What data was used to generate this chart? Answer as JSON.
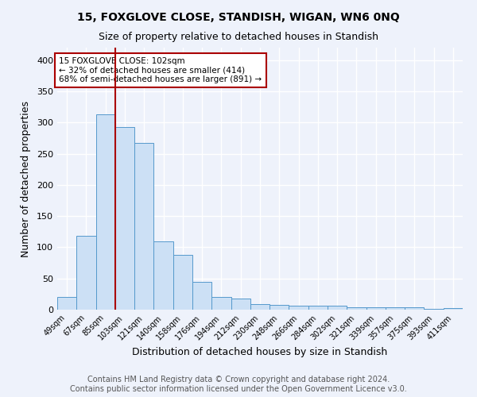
{
  "title": "15, FOXGLOVE CLOSE, STANDISH, WIGAN, WN6 0NQ",
  "subtitle": "Size of property relative to detached houses in Standish",
  "xlabel": "Distribution of detached houses by size in Standish",
  "ylabel": "Number of detached properties",
  "categories": [
    "49sqm",
    "67sqm",
    "85sqm",
    "103sqm",
    "121sqm",
    "140sqm",
    "158sqm",
    "176sqm",
    "194sqm",
    "212sqm",
    "230sqm",
    "248sqm",
    "266sqm",
    "284sqm",
    "302sqm",
    "321sqm",
    "339sqm",
    "357sqm",
    "375sqm",
    "393sqm",
    "411sqm"
  ],
  "values": [
    20,
    119,
    313,
    293,
    267,
    109,
    88,
    45,
    21,
    18,
    9,
    8,
    7,
    7,
    6,
    4,
    4,
    4,
    4,
    1,
    3
  ],
  "bar_color": "#cce0f5",
  "bar_edge_color": "#5599cc",
  "vline_x": 2.5,
  "vline_color": "#aa0000",
  "annotation_text": "15 FOXGLOVE CLOSE: 102sqm\n← 32% of detached houses are smaller (414)\n68% of semi-detached houses are larger (891) →",
  "annotation_box_color": "white",
  "annotation_box_edge": "#aa0000",
  "footer": "Contains HM Land Registry data © Crown copyright and database right 2024.\nContains public sector information licensed under the Open Government Licence v3.0.",
  "ylim": [
    0,
    420
  ],
  "bg_color": "#eef2fb",
  "grid_color": "#ffffff",
  "title_fontsize": 10,
  "subtitle_fontsize": 9,
  "footer_fontsize": 7
}
